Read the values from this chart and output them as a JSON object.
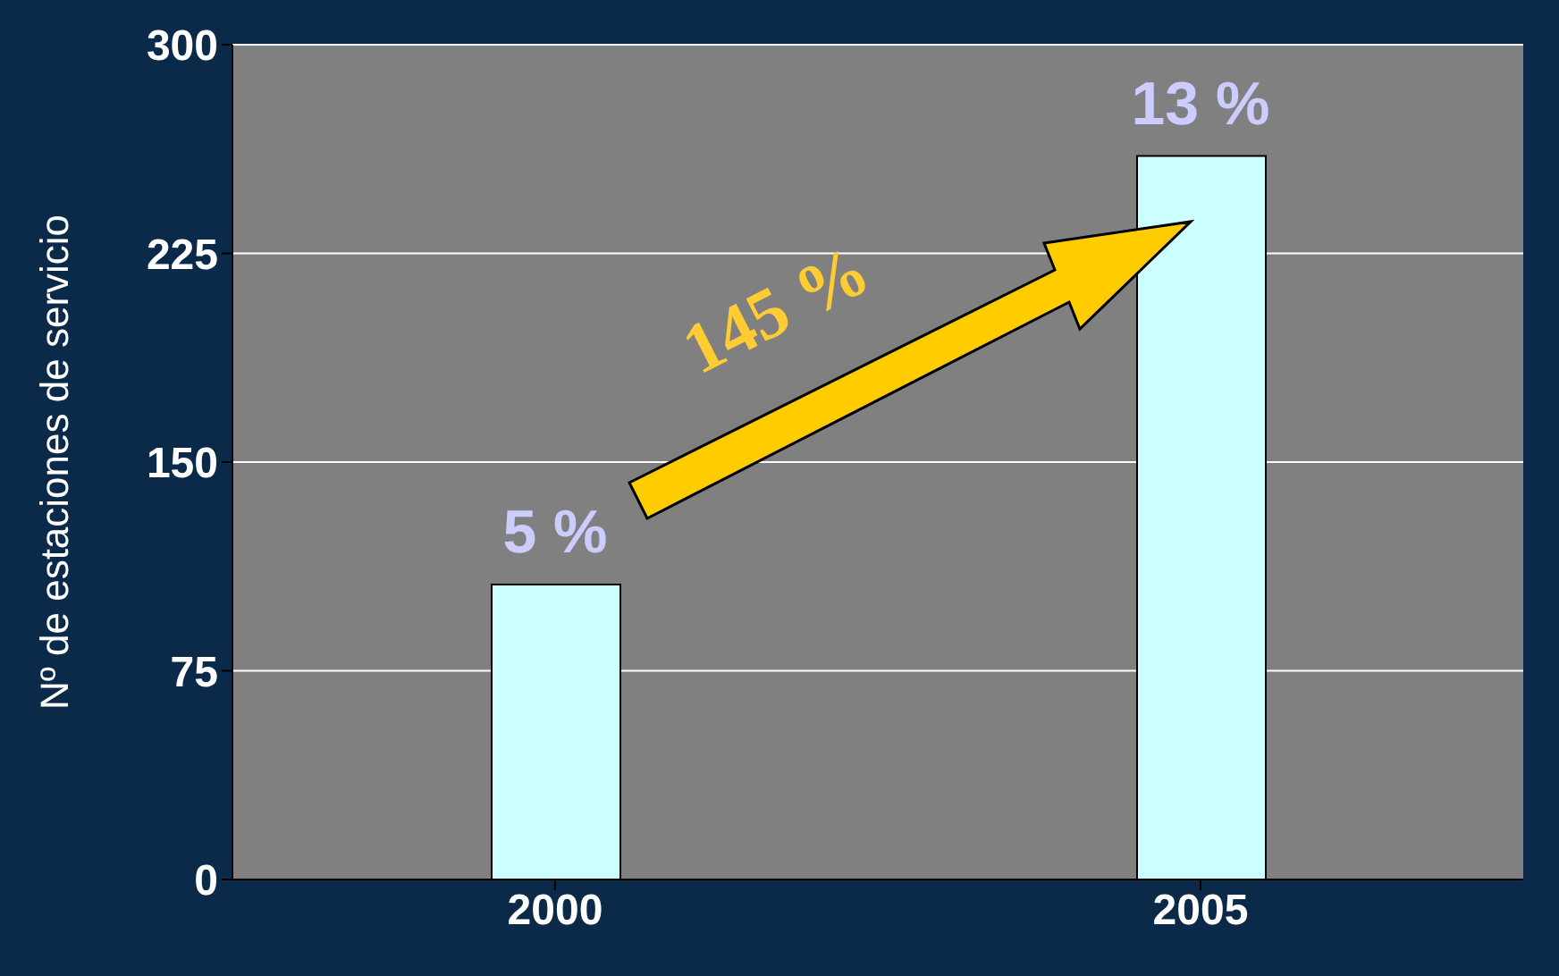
{
  "chart_data": {
    "type": "bar",
    "ylabel": "Nº de estaciones de servicio",
    "categories": [
      "2000",
      "2005"
    ],
    "values": [
      106,
      260
    ],
    "color": "#ccffff",
    "ylim": [
      0,
      300
    ],
    "yticks": [
      0,
      75,
      150,
      225,
      300
    ],
    "grid": "y",
    "annotations": [
      {
        "text": "5 %",
        "x": "2000",
        "y": 106
      },
      {
        "text": "13 %",
        "x": "2005",
        "y": 260
      },
      "145 %"
    ]
  }
}
